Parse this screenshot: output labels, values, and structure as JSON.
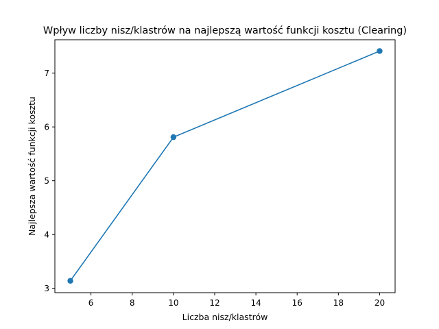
{
  "chart_data": {
    "type": "line",
    "title": "Wpływ liczby nisz/klastrów na najlepszą wartość funkcji kosztu (Clearing)",
    "xlabel": "Liczba nisz/klastrów",
    "ylabel": "Najlepsza wartość funkcji kosztu",
    "xlim": [
      4.25,
      20.75
    ],
    "ylim": [
      2.92,
      7.62
    ],
    "xticks": [
      6,
      8,
      10,
      12,
      14,
      16,
      18,
      20
    ],
    "yticks": [
      3,
      4,
      5,
      6,
      7
    ],
    "grid": false,
    "series": [
      {
        "x": [
          5,
          10,
          20
        ],
        "y": [
          3.14,
          5.81,
          7.41
        ],
        "color": "#1f77b4",
        "marker": "circle"
      }
    ]
  }
}
